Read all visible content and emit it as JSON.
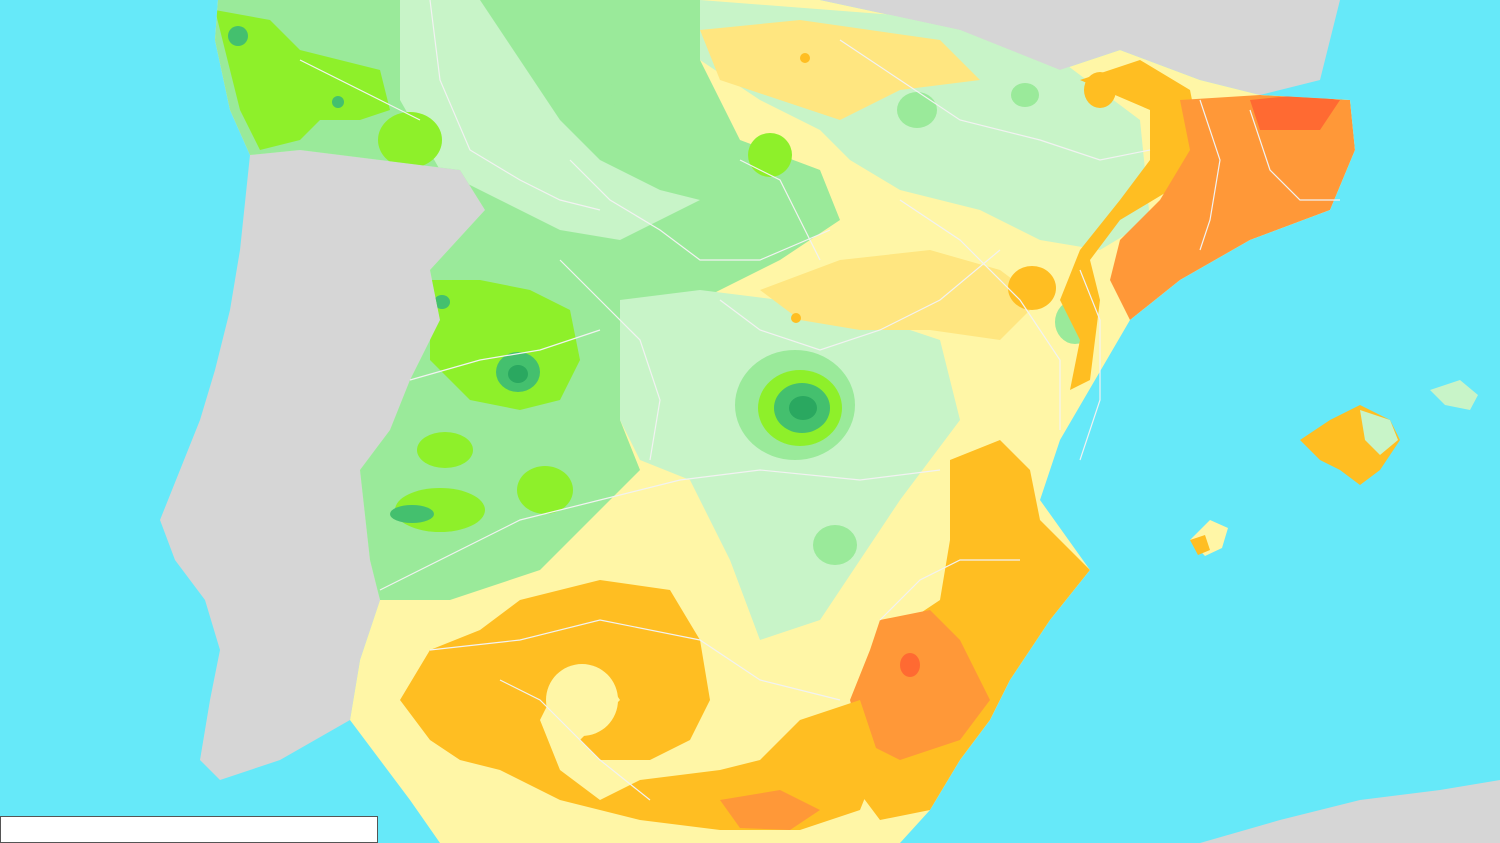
{
  "map": {
    "colors": {
      "sea": "#66e9f9",
      "land_outside": "#d6d6d6",
      "border_line": "#f2f2f2",
      "dark_green": "#2aa860",
      "mid_green": "#44c06e",
      "bright_green": "#8ef02a",
      "light_green": "#9aea9a",
      "pale_green": "#c8f4c8",
      "pale_yellow": "#fff6a6",
      "yellow": "#ffe680",
      "orange_yellow": "#ffbe22",
      "orange": "#ff9838",
      "red_orange": "#ff6a32"
    },
    "bands": [
      "dark_green",
      "mid_green",
      "bright_green",
      "light_green",
      "pale_green",
      "pale_yellow",
      "yellow",
      "orange_yellow",
      "orange",
      "red_orange"
    ]
  }
}
